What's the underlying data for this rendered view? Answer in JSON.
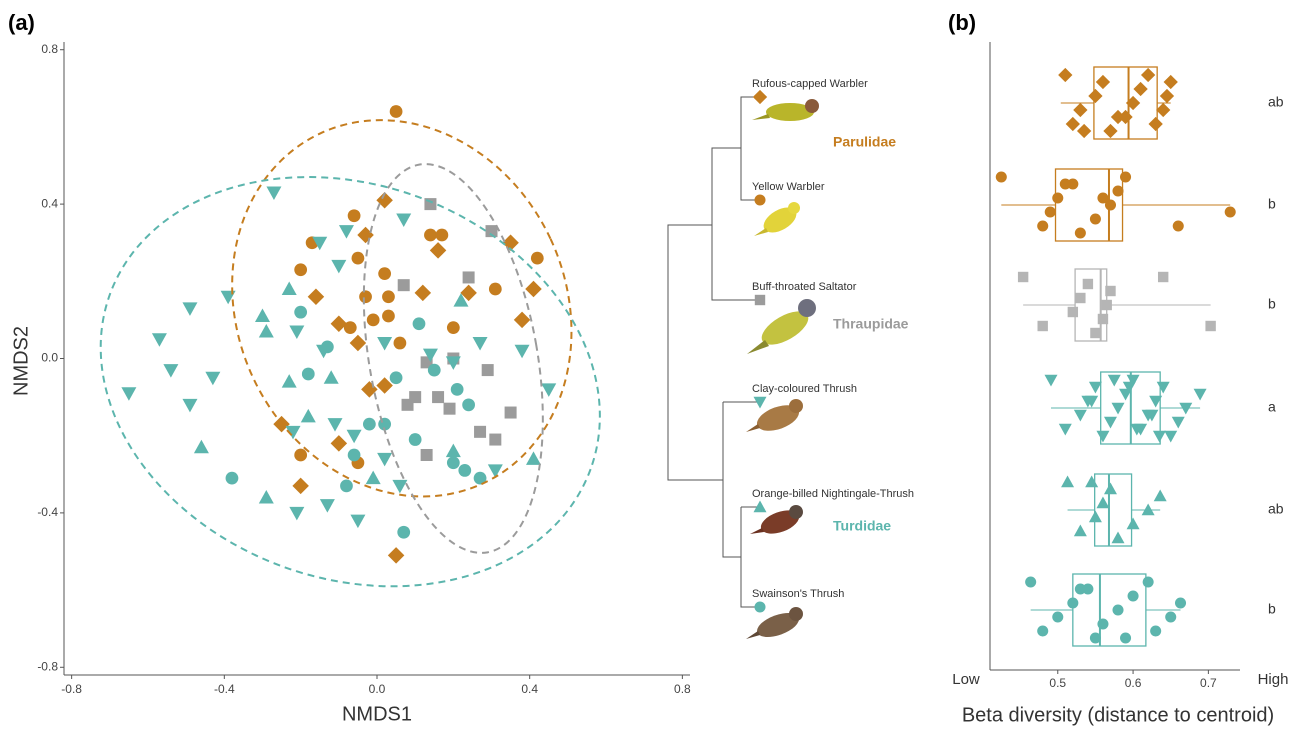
{
  "chart_data": [
    {
      "type": "scatter",
      "panel": "(a)",
      "xlabel": "NMDS1",
      "ylabel": "NMDS2",
      "xlim": [
        -0.82,
        0.82
      ],
      "ylim": [
        -0.82,
        0.82
      ],
      "xticks": [
        -0.8,
        -0.4,
        {
          "value": 0,
          "label": "0.0"
        },
        0.4,
        0.8
      ],
      "yticks": [
        -0.8,
        -0.4,
        {
          "value": 0,
          "label": "0.0"
        },
        0.4,
        0.8
      ],
      "series": [
        {
          "name": "Rufous-capped Warbler",
          "color": "#c57d1f",
          "marker": "diamond",
          "x": [
            0.02,
            -0.03,
            -0.16,
            -0.1,
            -0.05,
            -0.02,
            0.02,
            0.12,
            0.16,
            0.24,
            0.35,
            0.41,
            0.38,
            -0.25,
            -0.1,
            -0.2,
            0.05
          ],
          "y": [
            0.41,
            0.32,
            0.16,
            0.09,
            0.04,
            -0.08,
            -0.07,
            0.17,
            0.28,
            0.17,
            0.3,
            0.18,
            0.1,
            -0.17,
            -0.22,
            -0.33,
            -0.51
          ]
        },
        {
          "name": "Yellow Warbler",
          "color": "#c57d1f",
          "marker": "circle",
          "x": [
            0.05,
            -0.2,
            -0.06,
            -0.05,
            -0.17,
            0.03,
            -0.03,
            -0.01,
            0.03,
            0.06,
            -0.07,
            0.14,
            0.17,
            0.2,
            0.42,
            0.31,
            -0.05,
            -0.2,
            0.02
          ],
          "y": [
            0.64,
            0.23,
            0.37,
            0.26,
            0.3,
            0.16,
            0.16,
            0.1,
            0.11,
            0.04,
            0.08,
            0.32,
            0.32,
            0.08,
            0.26,
            0.18,
            -0.27,
            -0.25,
            0.22
          ]
        },
        {
          "name": "Buff-throated Saltator",
          "color": "#9b9b9b",
          "marker": "square",
          "x": [
            0.14,
            0.3,
            0.24,
            0.07,
            0.13,
            0.2,
            0.29,
            0.1,
            0.16,
            0.08,
            0.19,
            0.27,
            0.35,
            0.13,
            0.31
          ],
          "y": [
            0.4,
            0.33,
            0.21,
            0.19,
            -0.01,
            0,
            -0.03,
            -0.1,
            -0.1,
            -0.12,
            -0.13,
            -0.19,
            -0.14,
            -0.25,
            -0.21
          ]
        },
        {
          "name": "Clay-coloured Thrush",
          "color": "#5cb5ad",
          "marker": "tri-down",
          "x": [
            -0.27,
            -0.39,
            -0.49,
            -0.57,
            -0.54,
            -0.65,
            -0.43,
            -0.49,
            -0.15,
            -0.08,
            -0.1,
            -0.21,
            -0.14,
            0.07,
            0.02,
            0.14,
            0.27,
            0.38,
            0.45,
            0.2,
            -0.22,
            -0.11,
            -0.06,
            0.02,
            0.06,
            0.31,
            -0.21,
            -0.13,
            -0.05
          ],
          "y": [
            0.43,
            0.16,
            0.13,
            0.05,
            -0.03,
            -0.09,
            -0.05,
            -0.12,
            0.3,
            0.33,
            0.24,
            0.07,
            0.02,
            0.36,
            0.04,
            0.01,
            0.04,
            0.02,
            -0.08,
            -0.01,
            -0.19,
            -0.17,
            -0.2,
            -0.26,
            -0.33,
            -0.29,
            -0.4,
            -0.38,
            -0.42
          ]
        },
        {
          "name": "Orange-billed Nightingale-Thrush",
          "color": "#5cb5ad",
          "marker": "tri-up",
          "x": [
            -0.23,
            -0.3,
            -0.29,
            -0.23,
            -0.12,
            -0.18,
            -0.46,
            -0.29,
            0.2,
            0.41,
            0.22,
            -0.01
          ],
          "y": [
            0.18,
            0.11,
            0.07,
            -0.06,
            -0.05,
            -0.15,
            -0.23,
            -0.36,
            -0.24,
            -0.26,
            0.15,
            -0.31
          ]
        },
        {
          "name": "Swainson's Thrush",
          "color": "#5cb5ad",
          "marker": "circle",
          "x": [
            -0.38,
            -0.2,
            -0.18,
            -0.13,
            0.11,
            0.05,
            0.15,
            0.21,
            0.24,
            0.02,
            -0.02,
            0.1,
            0.2,
            0.23,
            0.27,
            -0.08,
            0.07,
            -0.06
          ],
          "y": [
            -0.31,
            0.12,
            -0.04,
            0.03,
            0.09,
            -0.05,
            -0.03,
            -0.08,
            -0.12,
            -0.17,
            -0.17,
            -0.21,
            -0.27,
            -0.29,
            -0.31,
            -0.33,
            -0.45,
            -0.25
          ]
        }
      ],
      "ellipses": [
        {
          "color": "#c57d1f",
          "center": [
            0.065,
            0.13
          ],
          "radii": [
            0.43,
            0.5
          ],
          "angle": -25
        },
        {
          "color": "#9b9b9b",
          "center": [
            0.2,
            0.0
          ],
          "radii": [
            0.22,
            0.51
          ],
          "angle": -10
        },
        {
          "color": "#5cb5ad",
          "center": [
            -0.07,
            -0.06
          ],
          "radii": [
            0.67,
            0.51
          ],
          "angle": 20
        }
      ],
      "families": [
        {
          "name": "Parulidae",
          "color": "#c57d1f"
        },
        {
          "name": "Thraupidae",
          "color": "#9b9b9b"
        },
        {
          "name": "Turdidae",
          "color": "#5cb5ad"
        }
      ]
    },
    {
      "type": "box",
      "panel": "(b)",
      "xlabel": "Beta diversity (distance to centroid)",
      "xlim": [
        0.41,
        0.742
      ],
      "xticks": [
        0.5,
        0.6,
        0.7
      ],
      "x_end_labels": [
        "Low",
        "High"
      ],
      "boxes": [
        {
          "color": "#c57d1f",
          "min": 0.504,
          "q1": 0.548,
          "median": 0.594,
          "q3": 0.632,
          "max": 0.65,
          "letter": "ab",
          "points": [
            0.51,
            0.52,
            0.53,
            0.55,
            0.56,
            0.57,
            0.58,
            0.6,
            0.61,
            0.62,
            0.63,
            0.64,
            0.645,
            0.65,
            0.535,
            0.59
          ]
        },
        {
          "color": "#c57d1f",
          "min": 0.425,
          "q1": 0.497,
          "median": 0.568,
          "q3": 0.586,
          "max": 0.729,
          "letter": "b",
          "points": [
            0.425,
            0.48,
            0.49,
            0.5,
            0.52,
            0.53,
            0.55,
            0.57,
            0.58,
            0.59,
            0.66,
            0.729,
            0.56,
            0.51
          ]
        },
        {
          "color": "#b5b5b5",
          "min": 0.454,
          "q1": 0.523,
          "median": 0.557,
          "q3": 0.565,
          "max": 0.703,
          "letter": "b",
          "points": [
            0.454,
            0.48,
            0.52,
            0.53,
            0.54,
            0.55,
            0.56,
            0.565,
            0.57,
            0.64,
            0.703
          ]
        },
        {
          "color": "#5cb5ad",
          "min": 0.491,
          "q1": 0.557,
          "median": 0.597,
          "q3": 0.636,
          "max": 0.689,
          "letter": "a",
          "points": [
            0.491,
            0.51,
            0.53,
            0.54,
            0.55,
            0.56,
            0.57,
            0.58,
            0.59,
            0.6,
            0.61,
            0.62,
            0.63,
            0.64,
            0.65,
            0.66,
            0.67,
            0.689,
            0.575,
            0.605,
            0.625,
            0.545,
            0.595,
            0.635
          ]
        },
        {
          "color": "#5cb5ad",
          "min": 0.513,
          "q1": 0.549,
          "median": 0.568,
          "q3": 0.598,
          "max": 0.636,
          "letter": "ab",
          "points": [
            0.513,
            0.53,
            0.55,
            0.56,
            0.57,
            0.58,
            0.6,
            0.62,
            0.636,
            0.545
          ]
        },
        {
          "color": "#5cb5ad",
          "min": 0.464,
          "q1": 0.52,
          "median": 0.556,
          "q3": 0.617,
          "max": 0.663,
          "letter": "b",
          "points": [
            0.464,
            0.48,
            0.5,
            0.52,
            0.53,
            0.55,
            0.56,
            0.58,
            0.6,
            0.62,
            0.63,
            0.65,
            0.663,
            0.54,
            0.59
          ]
        }
      ]
    }
  ]
}
